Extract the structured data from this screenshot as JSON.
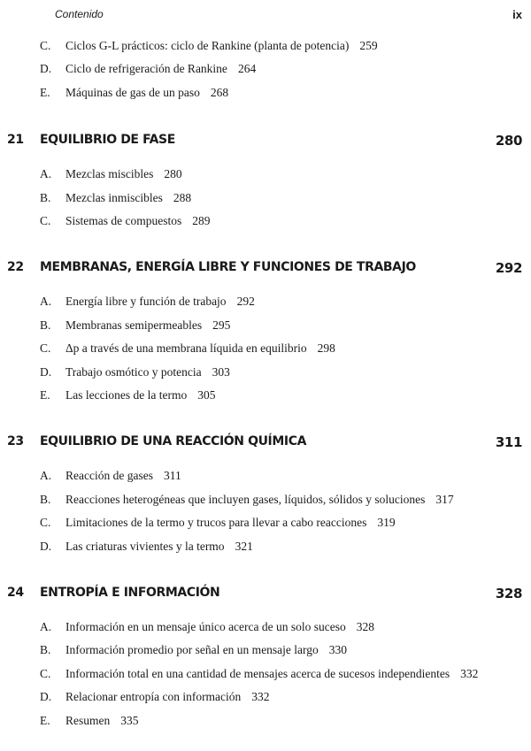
{
  "header": {
    "title": "Contenido",
    "page": "ix"
  },
  "intro_items": [
    {
      "letter": "C.",
      "text": "Ciclos G-L prácticos: ciclo de Rankine (planta de potencia)",
      "page": "259"
    },
    {
      "letter": "D.",
      "text": "Ciclo de refrigeración de Rankine",
      "page": "264"
    },
    {
      "letter": "E.",
      "text": "Máquinas de gas de un paso",
      "page": "268"
    }
  ],
  "chapters": [
    {
      "number": "21",
      "title": "EQUILIBRIO DE FASE",
      "page": "280",
      "items": [
        {
          "letter": "A.",
          "text": "Mezclas miscibles",
          "page": "280"
        },
        {
          "letter": "B.",
          "text": "Mezclas inmiscibles",
          "page": "288"
        },
        {
          "letter": "C.",
          "text": "Sistemas de compuestos",
          "page": "289"
        }
      ]
    },
    {
      "number": "22",
      "title": "MEMBRANAS, ENERGÍA LIBRE Y FUNCIONES DE TRABAJO",
      "page": "292",
      "items": [
        {
          "letter": "A.",
          "text": "Energía libre y función de trabajo",
          "page": "292"
        },
        {
          "letter": "B.",
          "text": "Membranas semipermeables",
          "page": "295"
        },
        {
          "letter": "C.",
          "text": "Δp a través de una membrana líquida en equilibrio",
          "page": "298"
        },
        {
          "letter": "D.",
          "text": "Trabajo osmótico y potencia",
          "page": "303"
        },
        {
          "letter": "E.",
          "text": "Las lecciones de la termo",
          "page": "305"
        }
      ]
    },
    {
      "number": "23",
      "title": "EQUILIBRIO DE UNA REACCIÓN QUÍMICA",
      "page": "311",
      "items": [
        {
          "letter": "A.",
          "text": "Reacción de gases",
          "page": "311"
        },
        {
          "letter": "B.",
          "text": "Reacciones heterogéneas que incluyen gases, líquidos, sólidos y soluciones",
          "page": "317"
        },
        {
          "letter": "C.",
          "text": "Limitaciones de la termo y trucos para llevar a cabo reacciones",
          "page": "319"
        },
        {
          "letter": "D.",
          "text": "Las criaturas vivientes y la termo",
          "page": "321"
        }
      ]
    },
    {
      "number": "24",
      "title": "ENTROPÍA E INFORMACIÓN",
      "page": "328",
      "items": [
        {
          "letter": "A.",
          "text": "Información en un mensaje único acerca de un solo suceso",
          "page": "328"
        },
        {
          "letter": "B.",
          "text": "Información promedio por señal en un mensaje largo",
          "page": "330"
        },
        {
          "letter": "C.",
          "text": "Información total en una cantidad de mensajes acerca de sucesos independientes",
          "page": "332"
        },
        {
          "letter": "D.",
          "text": "Relacionar entropía con información",
          "page": "332"
        },
        {
          "letter": "E.",
          "text": "Resumen",
          "page": "335"
        }
      ]
    }
  ]
}
